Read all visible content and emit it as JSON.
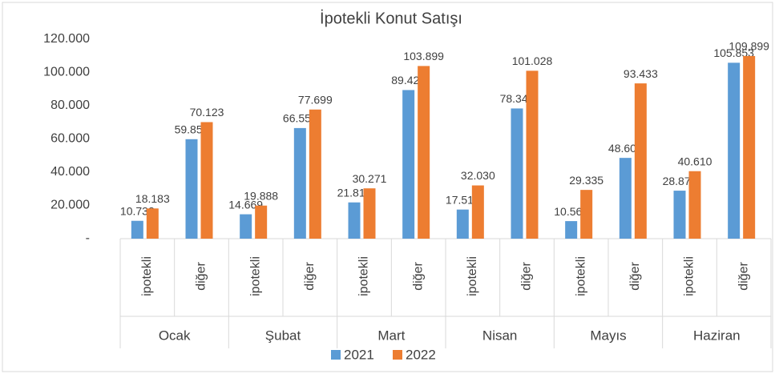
{
  "chart_data": {
    "type": "bar",
    "title": "İpotekli Konut Satışı",
    "categories": [
      "ipotekli",
      "diğer",
      "ipotekli",
      "diğer",
      "ipotekli",
      "diğer",
      "ipotekli",
      "diğer",
      "ipotekli",
      "diğer",
      "ipotekli",
      "diğer"
    ],
    "groups": [
      "Ocak",
      "Şubat",
      "Mart",
      "Nisan",
      "Mayıs",
      "Haziran"
    ],
    "series": [
      {
        "name": "2021",
        "color": "#5b9bd5",
        "values": [
          10732,
          59855,
          14669,
          66553,
          21815,
          89426,
          17514,
          78349,
          10560,
          48606,
          28878,
          105853
        ],
        "value_labels": [
          "10.732",
          "59.855",
          "14.669",
          "66.553",
          "21.815",
          "89.426",
          "17.514",
          "78.349",
          "10.560",
          "48.606",
          "28.878",
          "105.853"
        ]
      },
      {
        "name": "2022",
        "color": "#ed7d31",
        "values": [
          18183,
          70123,
          19888,
          77699,
          30271,
          103899,
          32030,
          101028,
          29335,
          93433,
          40610,
          109899
        ],
        "value_labels": [
          "18.183",
          "70.123",
          "19.888",
          "77.699",
          "30.271",
          "103.899",
          "32.030",
          "101.028",
          "29.335",
          "93.433",
          "40.610",
          "109.899"
        ]
      }
    ],
    "ylim": [
      0,
      120000
    ],
    "yticks": [
      {
        "value": 0,
        "label": "-"
      },
      {
        "value": 20000,
        "label": "20.000"
      },
      {
        "value": 40000,
        "label": "40.000"
      },
      {
        "value": 60000,
        "label": "60.000"
      },
      {
        "value": 80000,
        "label": "80.000"
      },
      {
        "value": 100000,
        "label": "100.000"
      },
      {
        "value": 120000,
        "label": "120.000"
      }
    ],
    "grid": false,
    "legend": "bottom"
  }
}
